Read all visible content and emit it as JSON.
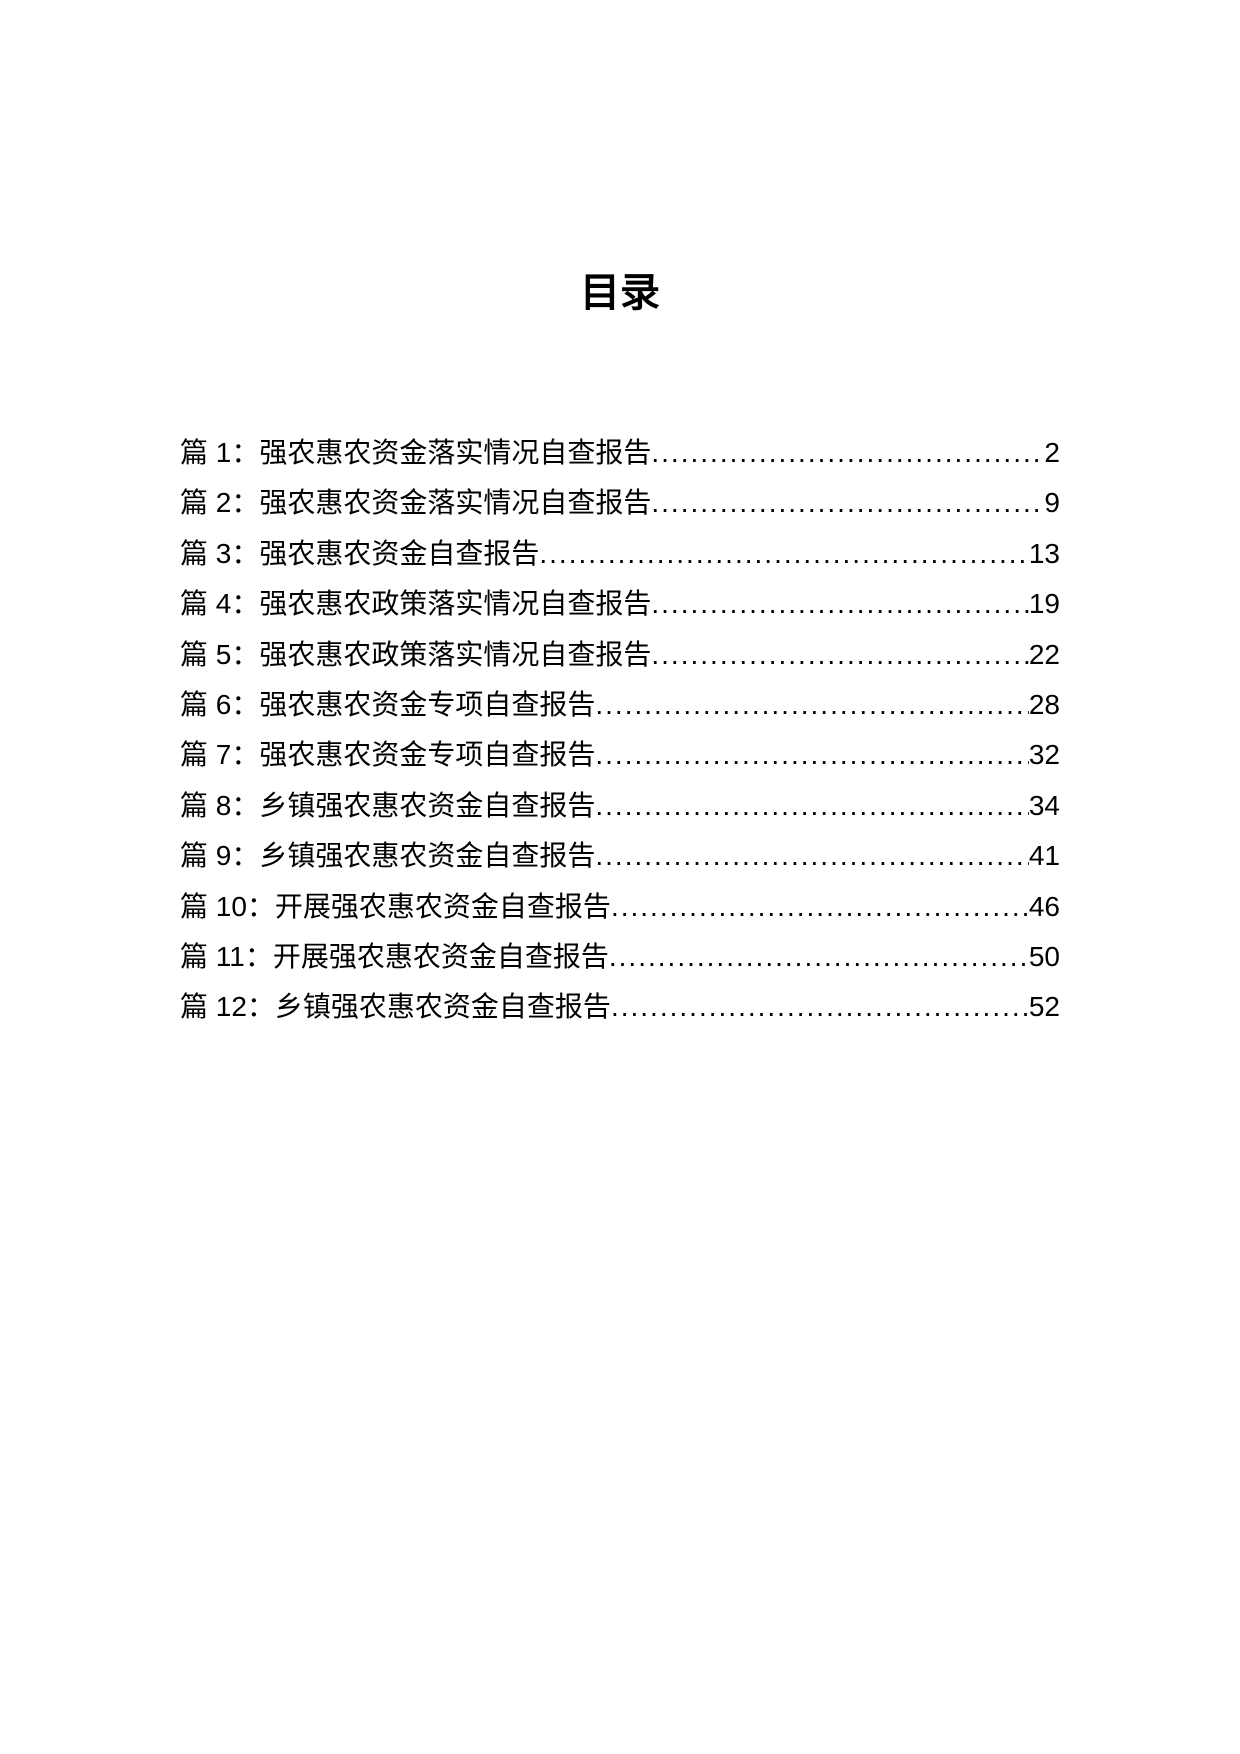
{
  "title": "目录",
  "entries": [
    {
      "label": "篇 1：强农惠农资金落实情况自查报告",
      "page": "2"
    },
    {
      "label": "篇 2：强农惠农资金落实情况自查报告",
      "page": "9"
    },
    {
      "label": "篇 3：强农惠农资金自查报告",
      "page": "13"
    },
    {
      "label": "篇 4：强农惠农政策落实情况自查报告",
      "page": "19"
    },
    {
      "label": "篇 5：强农惠农政策落实情况自查报告",
      "page": "22"
    },
    {
      "label": "篇 6：强农惠农资金专项自查报告",
      "page": "28"
    },
    {
      "label": "篇 7：强农惠农资金专项自查报告",
      "page": "32"
    },
    {
      "label": "篇 8：乡镇强农惠农资金自查报告",
      "page": "34"
    },
    {
      "label": "篇 9：乡镇强农惠农资金自查报告",
      "page": "41"
    },
    {
      "label": "篇 10：开展强农惠农资金自查报告",
      "page": "46"
    },
    {
      "label": "篇 11：开展强农惠农资金自查报告",
      "page": "50"
    },
    {
      "label": "篇 12：乡镇强农惠农资金自查报告",
      "page": "52"
    }
  ],
  "colors": {
    "background": "#ffffff",
    "text": "#000000"
  },
  "typography": {
    "title_fontsize": 40,
    "entry_fontsize": 28,
    "title_fontfamily": "SimSun",
    "entry_fontfamily": "Microsoft YaHei"
  }
}
